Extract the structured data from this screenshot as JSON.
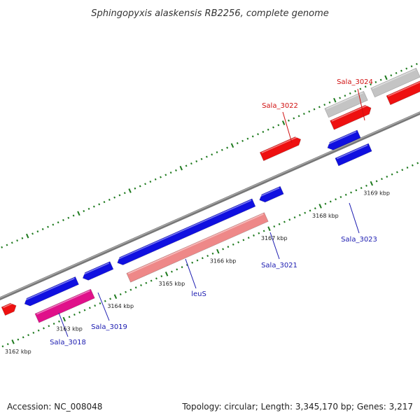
{
  "title": "Sphingopyxis alaskensis RB2256, complete genome",
  "footer": {
    "accession": "Accession: NC_008048",
    "topology": "Topology: circular; Length: 3,345,170 bp; Genes: 3,217"
  },
  "colors": {
    "backbone": "#8a8a8a",
    "ticks": "#1e7a1e",
    "gene_blue": "#1010e0",
    "gene_red": "#ee1010",
    "gene_gray": "#c4c4c4",
    "gene_pink": "#ee8888",
    "gene_magenta": "#e0108a",
    "label_blue": "#1a1ab0",
    "label_red": "#d01010"
  },
  "scale_labels": [
    {
      "text": "3162 kbp",
      "kbp": 3162
    },
    {
      "text": "3163 kbp",
      "kbp": 3163
    },
    {
      "text": "3164 kbp",
      "kbp": 3164
    },
    {
      "text": "3165 kbp",
      "kbp": 3165
    },
    {
      "text": "3166 kbp",
      "kbp": 3166
    },
    {
      "text": "3167 kbp",
      "kbp": 3167
    },
    {
      "text": "3168 kbp",
      "kbp": 3168
    },
    {
      "text": "3169 kbp",
      "kbp": 3169
    }
  ],
  "gene_labels": [
    {
      "text": "Sala_3018",
      "color": "blue"
    },
    {
      "text": "Sala_3019",
      "color": "blue"
    },
    {
      "text": "leuS",
      "color": "blue"
    },
    {
      "text": "Sala_3021",
      "color": "blue"
    },
    {
      "text": "Sala_3022",
      "color": "red"
    },
    {
      "text": "Sala_3023",
      "color": "blue"
    },
    {
      "text": "Sala_3024",
      "color": "red"
    }
  ]
}
